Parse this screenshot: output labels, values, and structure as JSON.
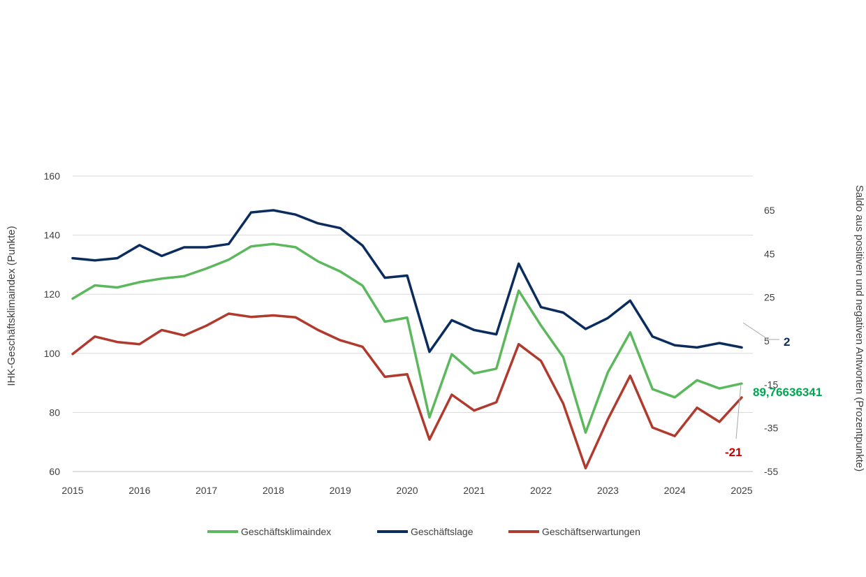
{
  "chart_data": {
    "type": "line",
    "x": [
      "2015",
      "",
      "",
      "2016",
      "",
      "",
      "2017",
      "",
      "",
      "2018",
      "",
      "",
      "2019",
      "",
      "",
      "2020",
      "",
      "",
      "2021",
      "",
      "",
      "2022",
      "",
      "",
      "2023",
      "",
      "",
      "2024",
      "",
      "",
      "2025"
    ],
    "x_tick_labels": [
      "2015",
      "2016",
      "2017",
      "2018",
      "2019",
      "2020",
      "2021",
      "2022",
      "2023",
      "2024",
      "2025"
    ],
    "left_axis": {
      "label": "IHK-Geschäftsklimaindex (Punkte)",
      "ticks": [
        60,
        80,
        100,
        120,
        140,
        160
      ],
      "range": [
        60,
        170
      ]
    },
    "right_axis": {
      "label": "Saldo aus positiven und negativen Antworten (Prozentpunkte)",
      "ticks": [
        -55,
        -35,
        -15,
        5,
        25,
        45,
        65
      ],
      "range": [
        -55,
        70
      ]
    },
    "grid": "horizontal",
    "legend_position": "bottom",
    "series": [
      {
        "name": "Geschäftsklimaindex",
        "axis": "left",
        "color": "#5cb85c",
        "values": [
          118.5,
          123,
          122.3,
          124.1,
          125.3,
          126.1,
          128.7,
          131.7,
          136.2,
          137.0,
          135.9,
          131.1,
          127.7,
          122.9,
          110.7,
          112.1,
          78.3,
          99.7,
          93.2,
          94.8,
          121.2,
          109.4,
          98.7,
          73.2,
          93.6,
          107.1,
          87.9,
          85.1,
          90.9,
          88.1,
          89.77
        ]
      },
      {
        "name": "Geschäftslage",
        "axis": "right",
        "color": "#0b2d5e",
        "values": [
          43,
          42,
          43,
          49,
          44,
          48,
          48,
          49.5,
          64,
          65,
          63,
          59,
          56.8,
          48.8,
          34,
          35,
          0,
          14.5,
          10,
          8,
          40.5,
          20.5,
          18,
          10.5,
          15.5,
          23.5,
          7,
          3,
          2,
          4,
          2
        ]
      },
      {
        "name": "Geschäftserwartungen",
        "axis": "right",
        "color": "#b03a2e",
        "values": [
          -1,
          7,
          4.5,
          3.5,
          10,
          7.5,
          12,
          17.5,
          16,
          16.7,
          15.8,
          10,
          5.3,
          2.3,
          -11.5,
          -10.3,
          -40.3,
          -19.7,
          -27,
          -23.2,
          3.5,
          -4.2,
          -23.8,
          -53.5,
          -31,
          -11,
          -34.8,
          -38.7,
          -25.7,
          -32.2,
          -21
        ]
      }
    ],
    "annotations": [
      {
        "series": "Geschäftslage",
        "text": "2",
        "color": "#0b2d5e"
      },
      {
        "series": "Geschäftsklimaindex",
        "text": "89,76636341",
        "color": "#00a651"
      },
      {
        "series": "Geschäftserwartungen",
        "text": "-21",
        "color": "#c00000"
      }
    ]
  }
}
